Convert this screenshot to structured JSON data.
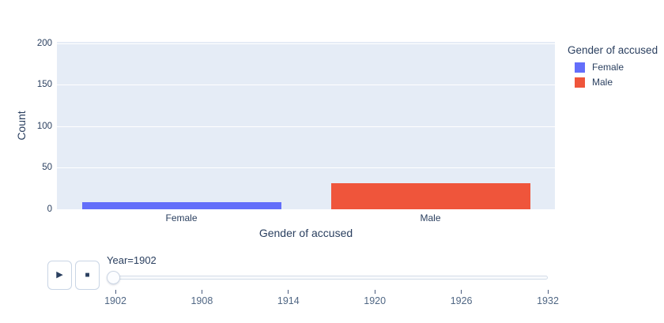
{
  "chart_data": {
    "type": "bar",
    "categories": [
      "Female",
      "Male"
    ],
    "values": [
      9,
      31
    ],
    "colors": [
      "#636EFA",
      "#EF553B"
    ],
    "title": "",
    "xlabel": "Gender of accused",
    "ylabel": "Count",
    "ylim": [
      0,
      200
    ],
    "yticks": [
      0,
      50,
      100,
      150,
      200
    ],
    "grid": true,
    "legend_position": "right",
    "plot_bg": "#E5ECF6",
    "grid_color": "#FFFFFF",
    "font_color": "#2a3f5f"
  },
  "legend": {
    "title": "Gender of accused",
    "items": [
      {
        "label": "Female",
        "color": "#636EFA"
      },
      {
        "label": "Male",
        "color": "#EF553B"
      }
    ]
  },
  "controls": {
    "play_icon": "▶",
    "stop_icon": "■",
    "frame_label": "Year=1902"
  },
  "slider": {
    "current_value": "1902",
    "tick_labels": [
      "1902",
      "1908",
      "1914",
      "1920",
      "1926",
      "1932"
    ]
  }
}
